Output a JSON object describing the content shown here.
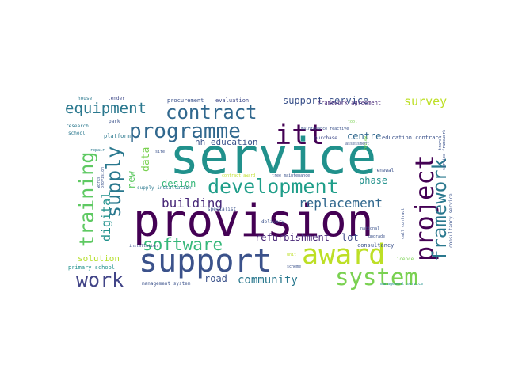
{
  "words": [
    {
      "text": "service",
      "color": "#21918c"
    },
    {
      "text": "provision",
      "color": "#440154"
    },
    {
      "text": "support",
      "color": "#3b528b"
    },
    {
      "text": "award",
      "color": "#bddf26"
    },
    {
      "text": "system",
      "color": "#7ad151"
    },
    {
      "text": "project",
      "color": "#440154"
    },
    {
      "text": "programme",
      "color": "#31688e"
    },
    {
      "text": "contract",
      "color": "#31688e"
    },
    {
      "text": "development",
      "color": "#1f9e89"
    },
    {
      "text": "itt",
      "color": "#440154"
    },
    {
      "text": "framework",
      "color": "#2a788e"
    },
    {
      "text": "supply",
      "color": "#2a788e"
    },
    {
      "text": "training",
      "color": "#5ec962"
    },
    {
      "text": "work",
      "color": "#414487"
    },
    {
      "text": "software",
      "color": "#35b779"
    },
    {
      "text": "equipment",
      "color": "#2a788e"
    },
    {
      "text": "replacement",
      "color": "#31688e"
    },
    {
      "text": "community",
      "color": "#2a788e"
    },
    {
      "text": "survey",
      "color": "#bddf26"
    },
    {
      "text": "building",
      "color": "#482878"
    },
    {
      "text": "digital",
      "color": "#21918c"
    },
    {
      "text": "support service",
      "color": "#3b528b"
    },
    {
      "text": "refurbishment",
      "color": "#482878"
    },
    {
      "text": "nh education",
      "color": "#3b528b"
    },
    {
      "text": "design",
      "color": "#35b779"
    },
    {
      "text": "data",
      "color": "#7ad151"
    },
    {
      "text": "centre",
      "color": "#31688e"
    },
    {
      "text": "phase",
      "color": "#21918c"
    },
    {
      "text": "solution",
      "color": "#b5de2b"
    },
    {
      "text": "lot",
      "color": "#3e4989"
    },
    {
      "text": "road",
      "color": "#3b528b"
    },
    {
      "text": "new",
      "color": "#5ec962"
    },
    {
      "text": "procurement",
      "color": "#3b528b"
    },
    {
      "text": "evaluation",
      "color": "#3e4989"
    },
    {
      "text": "framework agreement",
      "color": "#482878"
    },
    {
      "text": "house",
      "color": "#2a788e"
    },
    {
      "text": "tender",
      "color": "#3e4989"
    },
    {
      "text": "research",
      "color": "#2a788e"
    },
    {
      "text": "park",
      "color": "#3b528b"
    },
    {
      "text": "school",
      "color": "#2a788e"
    },
    {
      "text": "platform",
      "color": "#2a788e"
    },
    {
      "text": "repair",
      "color": "#2a788e"
    },
    {
      "text": "site",
      "color": "#3b528b"
    },
    {
      "text": "tool",
      "color": "#7ad151"
    },
    {
      "text": "maintenance reactive",
      "color": "#3b528b"
    },
    {
      "text": "purchase",
      "color": "#3e4989"
    },
    {
      "text": "assessment",
      "color": "#3b528b"
    },
    {
      "text": "education contract",
      "color": "#3b528b"
    },
    {
      "text": "service framework",
      "color": "#3b528b"
    },
    {
      "text": "consultancy service",
      "color": "#3b528b"
    },
    {
      "text": "contract award",
      "color": "#bddf26"
    },
    {
      "text": "tree maintenance",
      "color": "#3b528b"
    },
    {
      "text": "renewal",
      "color": "#3b528b"
    },
    {
      "text": "supply installation",
      "color": "#2a788e"
    },
    {
      "text": "specialist",
      "color": "#3b528b"
    },
    {
      "text": "delivery",
      "color": "#3b528b"
    },
    {
      "text": "national",
      "color": "#3b528b"
    },
    {
      "text": "consultancy",
      "color": "#3b528b"
    },
    {
      "text": "upgrade",
      "color": "#3b528b"
    },
    {
      "text": "installation",
      "color": "#3b528b"
    },
    {
      "text": "unit",
      "color": "#bddf26"
    },
    {
      "text": "scheme",
      "color": "#3b528b"
    },
    {
      "text": "licence",
      "color": "#7ad151"
    },
    {
      "text": "primary school",
      "color": "#21918c"
    },
    {
      "text": "management system",
      "color": "#3b528b"
    },
    {
      "text": "management service",
      "color": "#21918c"
    },
    {
      "text": "works",
      "color": "#3b528b"
    },
    {
      "text": "provision",
      "color": "#3b528b"
    },
    {
      "text": "call contract",
      "color": "#3b528b"
    },
    {
      "text": "review",
      "color": "#7ad151"
    },
    {
      "text": "travel",
      "color": "#3b528b"
    }
  ]
}
